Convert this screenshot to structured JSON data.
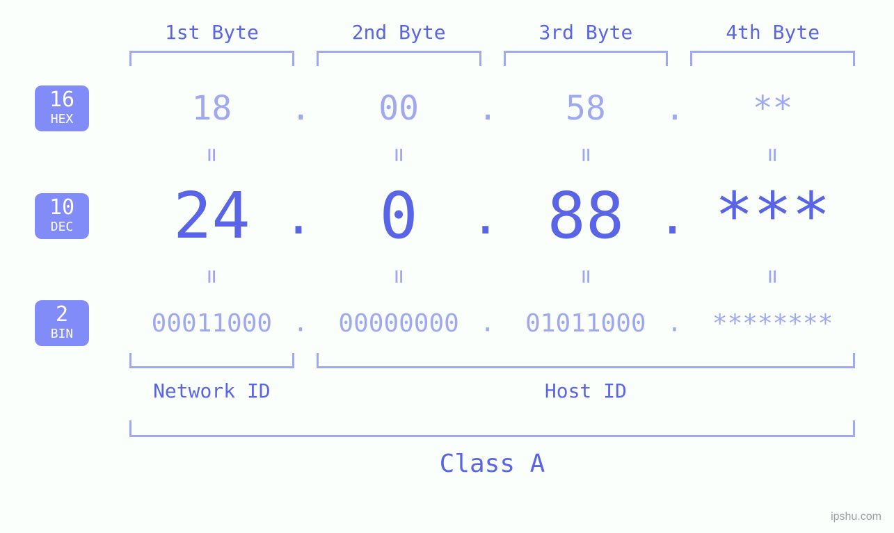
{
  "colors": {
    "background": "#fafffb",
    "primary_text": "#5964e6",
    "secondary_text": "#a0a8ef",
    "badge_bg": "#818cf8",
    "badge_text": "#ffffff"
  },
  "font_family": "monospace",
  "byte_headers": [
    "1st Byte",
    "2nd Byte",
    "3rd Byte",
    "4th Byte"
  ],
  "rows": {
    "hex": {
      "base": "16",
      "label": "HEX",
      "values": [
        "18",
        "00",
        "58",
        "**"
      ],
      "fontsize": 48,
      "color": "#a0a8ef"
    },
    "dec": {
      "base": "10",
      "label": "DEC",
      "values": [
        "24",
        "0",
        "88",
        "***"
      ],
      "fontsize": 92,
      "color": "#5964e6"
    },
    "bin": {
      "base": "2",
      "label": "BIN",
      "values": [
        "00011000",
        "00000000",
        "01011000",
        "********"
      ],
      "fontsize": 36,
      "color": "#a0a8ef"
    }
  },
  "equals_symbol": "=",
  "dot_symbol": ".",
  "groups": {
    "network": {
      "label": "Network ID",
      "span_bytes": [
        0
      ]
    },
    "host": {
      "label": "Host ID",
      "span_bytes": [
        1,
        2,
        3
      ]
    }
  },
  "class_label": "Class A",
  "credit": "ipshu.com"
}
